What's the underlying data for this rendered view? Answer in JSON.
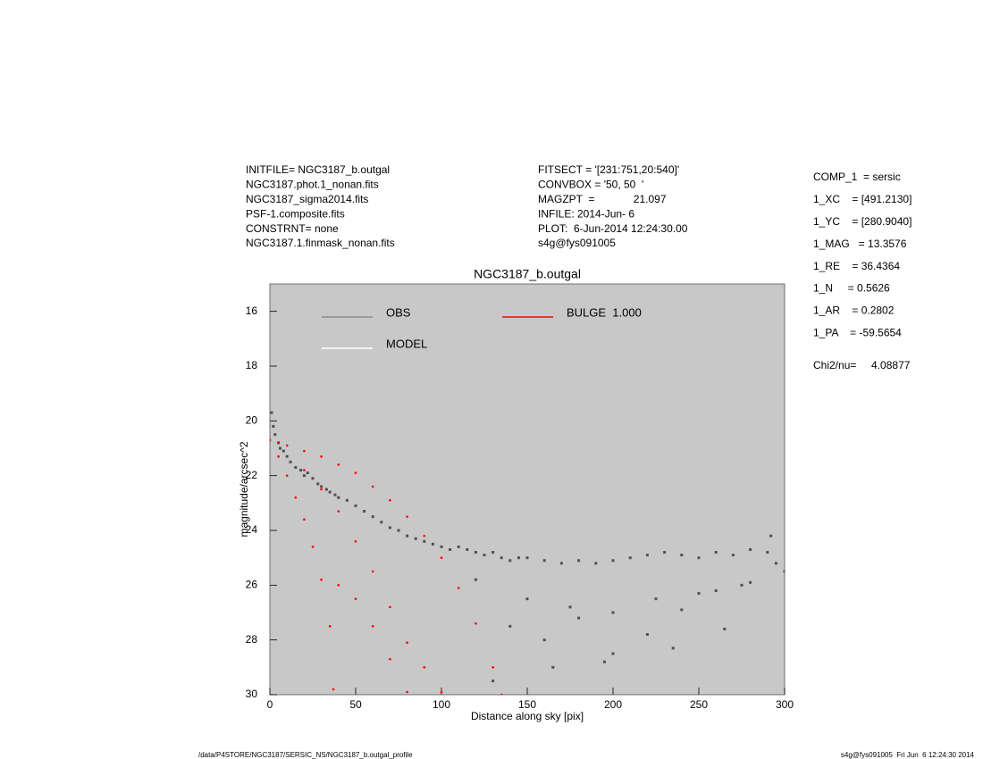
{
  "header": {
    "left": [
      "INITFILE= NGC3187_b.outgal",
      "NGC3187.phot.1_nonan.fits",
      "NGC3187_sigma2014.fits",
      "PSF-1.composite.fits",
      "CONSTRNT= none",
      "NGC3187.1.finmask_nonan.fits"
    ],
    "middle": [
      "FITSECT = '[231:751,20:540]'",
      "CONVBOX = '50, 50  '",
      "MAGZPT  =             21.097",
      "INFILE: 2014-Jun- 6",
      "PLOT:  6-Jun-2014 12:24:30.00",
      "s4g@fys091005"
    ],
    "right": [
      "COMP_1  = sersic",
      "1_XC    = [491.2130]",
      "1_YC    = [280.9040]",
      "1_MAG   = 13.3576",
      "1_RE    = 36.4364",
      "1_N     = 0.5626",
      "1_AR    = 0.2802",
      "1_PA    = -59.5654"
    ],
    "chi2": "Chi2/nu=     4.08877"
  },
  "chart_data": {
    "type": "scatter",
    "title": "NGC3187_b.outgal",
    "x_label": "Distance along sky [pix]",
    "y_label": "magnitude/arcsec^2",
    "xlim": [
      0,
      300
    ],
    "xticks": [
      0,
      50,
      100,
      150,
      200,
      250,
      300
    ],
    "ylim": [
      15,
      30
    ],
    "yticks": [
      16,
      18,
      20,
      22,
      24,
      26,
      28,
      30
    ],
    "y_inverted": true,
    "background": "#c8c8c8",
    "series": [
      {
        "name": "OBS",
        "color": "#8c8c8c",
        "point_color": "#505050",
        "x": [
          1,
          2,
          3,
          5,
          6,
          8,
          10,
          12,
          15,
          18,
          20,
          22,
          25,
          28,
          30,
          33,
          35,
          38,
          40,
          45,
          50,
          55,
          60,
          65,
          70,
          75,
          80,
          85,
          90,
          95,
          100,
          105,
          110,
          115,
          120,
          125,
          130,
          135,
          140,
          145,
          150,
          160,
          170,
          180,
          190,
          200,
          210,
          220,
          230,
          240,
          250,
          260,
          270,
          280,
          290,
          295,
          300,
          150,
          175,
          200,
          225,
          250,
          275,
          120,
          140,
          160,
          180,
          200,
          220,
          240,
          260,
          280,
          130,
          165,
          195,
          235,
          265,
          292
        ],
        "y": [
          19.7,
          20.2,
          20.5,
          20.8,
          21.0,
          21.1,
          21.3,
          21.5,
          21.7,
          21.8,
          22.0,
          21.9,
          22.1,
          22.3,
          22.4,
          22.5,
          22.6,
          22.7,
          22.8,
          22.9,
          23.1,
          23.3,
          23.5,
          23.7,
          23.9,
          24.0,
          24.2,
          24.3,
          24.4,
          24.5,
          24.6,
          24.7,
          24.6,
          24.7,
          24.8,
          24.9,
          24.8,
          25.0,
          25.1,
          25.0,
          25.0,
          25.1,
          25.2,
          25.1,
          25.2,
          25.1,
          25.0,
          24.9,
          24.8,
          24.9,
          25.0,
          24.8,
          24.9,
          24.7,
          24.8,
          25.2,
          25.5,
          26.5,
          26.8,
          27.0,
          26.5,
          26.3,
          26.0,
          25.8,
          27.5,
          28.0,
          27.2,
          28.5,
          27.8,
          26.9,
          26.2,
          25.9,
          29.5,
          29.0,
          28.8,
          28.3,
          27.6,
          24.2
        ]
      },
      {
        "name": "BULGE  1.000",
        "color": "#ff0000",
        "point_color": "#ff0000",
        "x": [
          0,
          5,
          10,
          20,
          30,
          40,
          50,
          60,
          70,
          80,
          90,
          100,
          110,
          120,
          130,
          135,
          5,
          10,
          15,
          20,
          25,
          30,
          35,
          37,
          20,
          30,
          40,
          50,
          60,
          70,
          80,
          90,
          100,
          40,
          50,
          60,
          70,
          80
        ],
        "y": [
          20.7,
          20.8,
          20.9,
          21.1,
          21.3,
          21.6,
          21.9,
          22.4,
          22.9,
          23.5,
          24.2,
          25.0,
          26.1,
          27.4,
          29.0,
          30.0,
          21.3,
          22.0,
          22.8,
          23.6,
          24.6,
          25.8,
          27.5,
          29.8,
          21.8,
          22.5,
          23.3,
          24.4,
          25.5,
          26.8,
          28.1,
          29.0,
          29.9,
          26.0,
          26.5,
          27.5,
          28.7,
          29.9
        ]
      },
      {
        "name": "MODEL",
        "color": "#ffffff"
      }
    ]
  },
  "footer": {
    "left": "/data/P4STORE/NGC3187/SERSIC_NS/NGC3187_b.outgal_profile",
    "right": "s4g@fys091005  Fri Jun  6 12:24:30 2014"
  }
}
